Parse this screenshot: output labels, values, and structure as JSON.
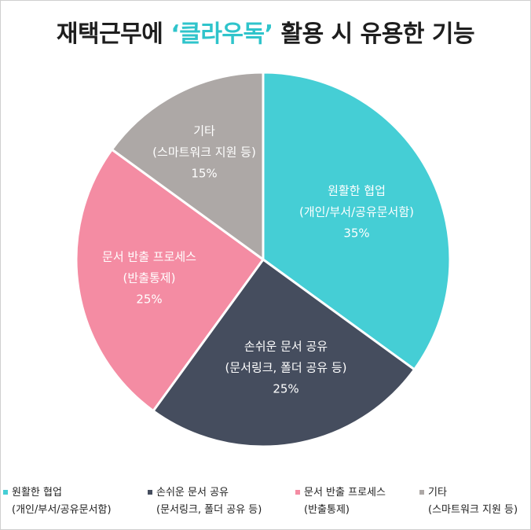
{
  "title": {
    "prefix": "재택근무에 ",
    "highlight": "‘클라우독’",
    "suffix": " 활용 시 유용한 기능"
  },
  "chart_data": {
    "type": "pie",
    "title": "재택근무에 ‘클라우독’ 활용 시 유용한 기능",
    "unit": "%",
    "legend_position": "bottom",
    "slices": [
      {
        "label": "원활한 협업",
        "sublabel": "(개인/부서/공유문서함)",
        "value": 35,
        "value_label": "35%",
        "color": "#45ced5",
        "text_color": "#ffffff"
      },
      {
        "label": "손쉬운 문서 공유",
        "sublabel": "(문서링크, 폴더 공유 등)",
        "value": 25,
        "value_label": "25%",
        "color": "#454d5e",
        "text_color": "#ffffff"
      },
      {
        "label": "문서 반출 프로세스",
        "sublabel": "(반출통제)",
        "value": 25,
        "value_label": "25%",
        "color": "#f48ca3",
        "text_color": "#ffffff"
      },
      {
        "label": "기타",
        "sublabel": "(스마트워크 지원 등)",
        "value": 15,
        "value_label": "15%",
        "color": "#ada8a6",
        "text_color": "#ffffff"
      }
    ]
  }
}
